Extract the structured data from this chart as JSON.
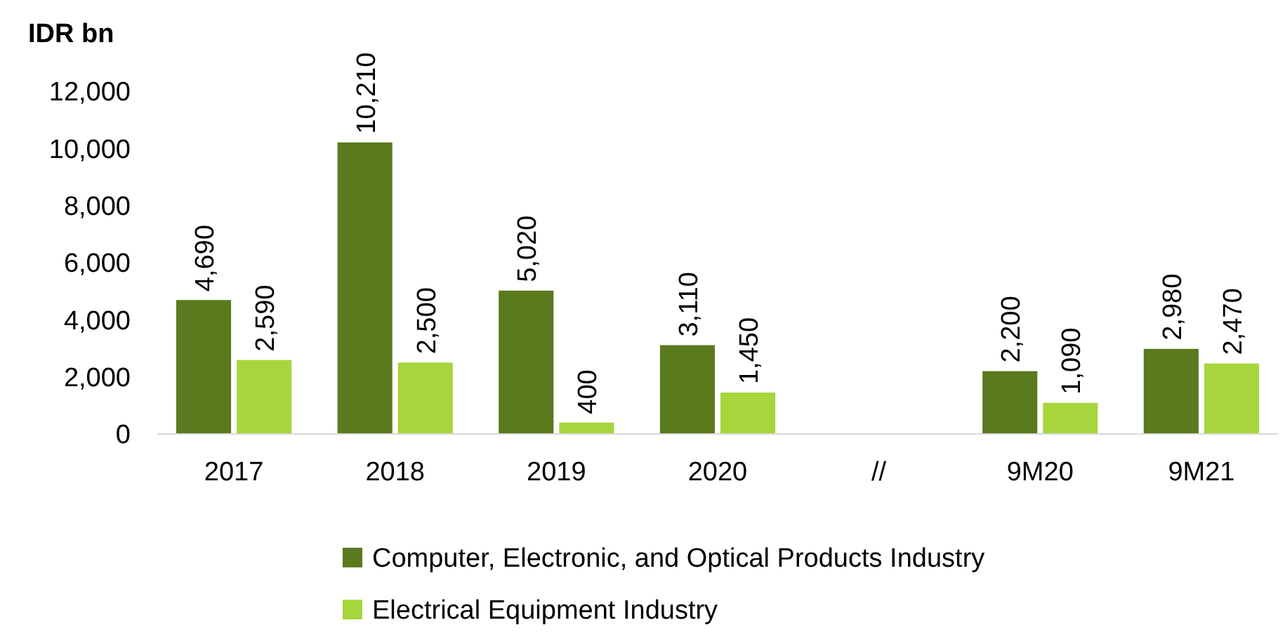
{
  "chart_data": {
    "type": "bar",
    "ylabel": "IDR bn",
    "categories": [
      "2017",
      "2018",
      "2019",
      "2020",
      "//",
      "9M20",
      "9M21"
    ],
    "series": [
      {
        "name": "Computer, Electronic, and Optical Products Industry",
        "color": "#5a7a1e",
        "values": [
          4690,
          10210,
          5020,
          3110,
          null,
          2200,
          2980
        ],
        "value_labels": [
          "4,690",
          "10,210",
          "5,020",
          "3,110",
          null,
          "2,200",
          "2,980"
        ]
      },
      {
        "name": "Electrical Equipment Industry",
        "color": "#a6d63c",
        "values": [
          2590,
          2500,
          400,
          1450,
          null,
          1090,
          2470
        ],
        "value_labels": [
          "2,590",
          "2,500",
          "400",
          "1,450",
          null,
          "1,090",
          "2,470"
        ]
      }
    ],
    "ylim": [
      0,
      12000
    ],
    "yticks": [
      {
        "value": 0,
        "label": "0"
      },
      {
        "value": 2000,
        "label": "2,000"
      },
      {
        "value": 4000,
        "label": "4,000"
      },
      {
        "value": 6000,
        "label": "6,000"
      },
      {
        "value": 8000,
        "label": "8,000"
      },
      {
        "value": 10000,
        "label": "10,000"
      },
      {
        "value": 12000,
        "label": "12,000"
      }
    ],
    "grid": false,
    "legend": "bottom"
  }
}
